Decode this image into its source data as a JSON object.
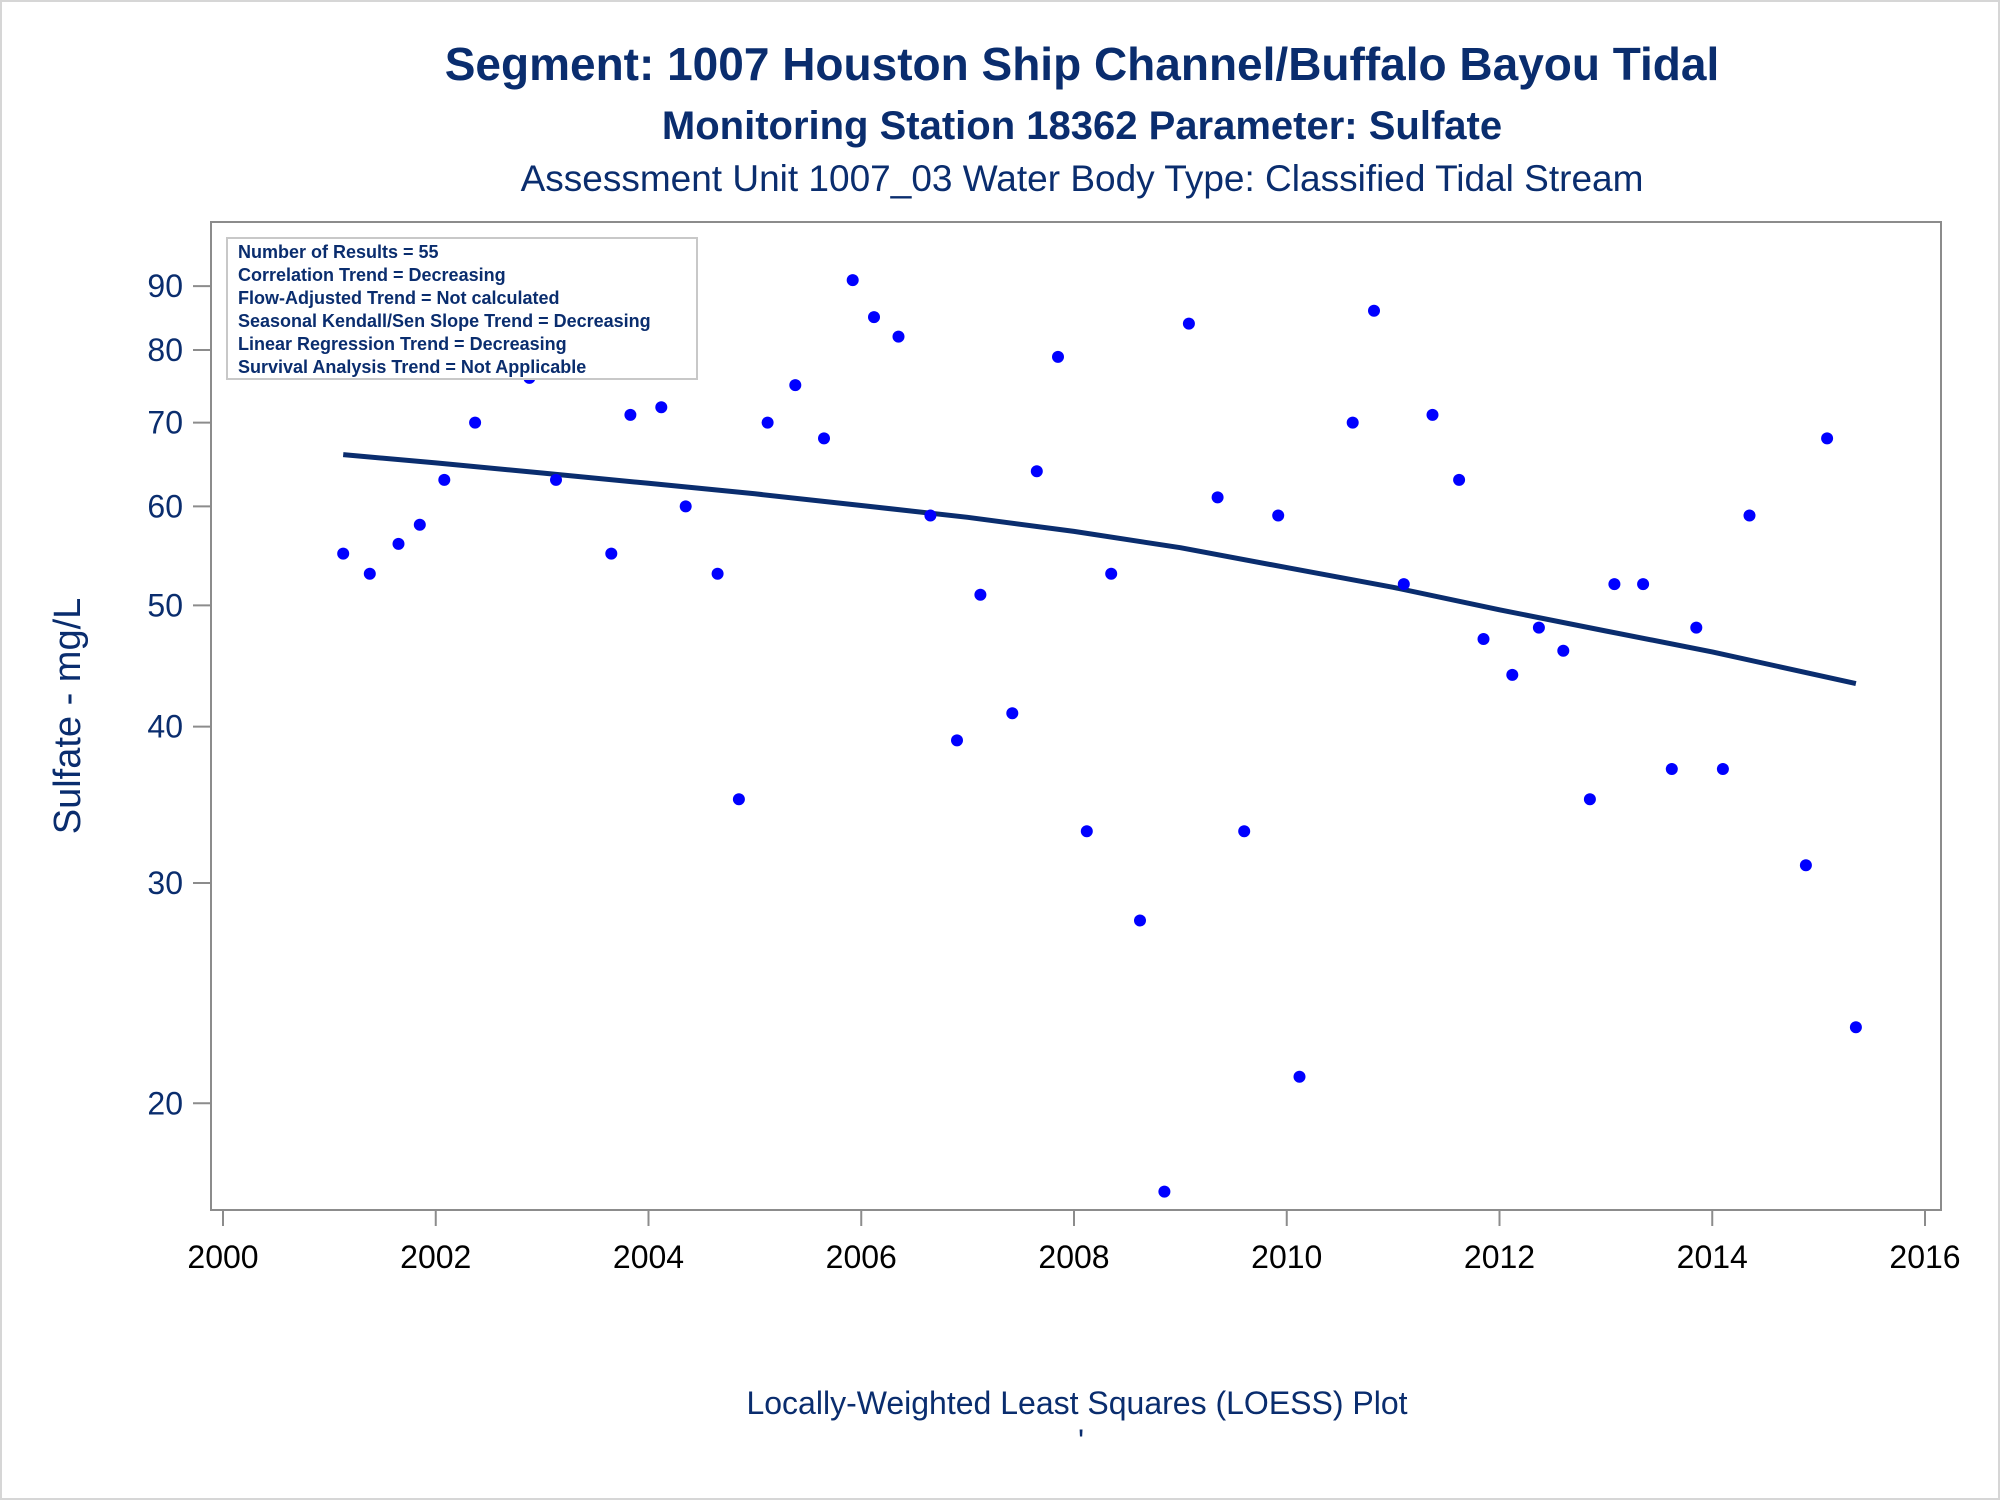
{
  "chart_data": {
    "type": "scatter",
    "title": "Segment: 1007  Houston Ship Channel/Buffalo Bayou Tidal",
    "subtitle": "Monitoring Station 18362 Parameter: Sulfate",
    "subtitle2": "Assessment Unit 1007_03   Water Body Type: Classified Tidal Stream",
    "xlabel": "",
    "ylabel": "Sulfate - mg/L",
    "footnote": "Locally-Weighted Least Squares (LOESS) Plot",
    "footnote_mark": "'",
    "y_scale": "log",
    "xlim": [
      2000,
      2016
    ],
    "ylim": [
      16.8,
      96
    ],
    "x_ticks": [
      2000,
      2002,
      2004,
      2006,
      2008,
      2010,
      2012,
      2014,
      2016
    ],
    "y_ticks": [
      20,
      30,
      40,
      50,
      60,
      70,
      80,
      90
    ],
    "grid": false,
    "stats_box": {
      "placement": "top-left",
      "lines": [
        "Number of Results = 55",
        "Correlation Trend = Decreasing",
        "Flow-Adjusted Trend = Not calculated",
        "Seasonal Kendall/Sen Slope Trend = Decreasing",
        "Linear Regression Trend = Decreasing",
        "Survival Analysis Trend = Not Applicable"
      ]
    },
    "colors": {
      "points": "#0000ff",
      "trend": "#0a2d6e",
      "text": "#0a2d6e",
      "axis": "#8c8c8c"
    },
    "series": [
      {
        "type": "scatter",
        "x": [
          2001.13,
          2001.38,
          2001.65,
          2001.85,
          2002.08,
          2002.37,
          2002.88,
          2003.13,
          2003.35,
          2003.65,
          2003.83,
          2004.12,
          2004.35,
          2004.65,
          2004.85,
          2005.12,
          2005.38,
          2005.65,
          2005.92,
          2006.12,
          2006.35,
          2006.65,
          2006.9,
          2007.12,
          2007.42,
          2007.65,
          2007.85,
          2008.12,
          2008.35,
          2008.62,
          2008.85,
          2009.08,
          2009.35,
          2009.6,
          2009.92,
          2010.12,
          2010.62,
          2010.82,
          2011.1,
          2011.37,
          2011.62,
          2011.85,
          2012.12,
          2012.37,
          2012.6,
          2012.85,
          2013.08,
          2013.35,
          2013.62,
          2013.85,
          2014.1,
          2014.35,
          2014.88,
          2015.08,
          2015.35
        ],
        "y": [
          55,
          53,
          56,
          58,
          63,
          70,
          76,
          63,
          78,
          55,
          71,
          72,
          60,
          53,
          35,
          70,
          75,
          68,
          91,
          85,
          82,
          59,
          39,
          51,
          41,
          64,
          79,
          33,
          53,
          28,
          17,
          84,
          61,
          33,
          59,
          21,
          70,
          86,
          52,
          71,
          63,
          47,
          44,
          48,
          46,
          35,
          52,
          52,
          37,
          48,
          37,
          59,
          31,
          68,
          23
        ]
      },
      {
        "type": "line",
        "x": [
          2001.13,
          2002,
          2003,
          2004,
          2005,
          2006,
          2007,
          2008,
          2009,
          2010,
          2011,
          2012,
          2013,
          2014,
          2015.35
        ],
        "y": [
          66,
          65,
          63.8,
          62.6,
          61.4,
          60.1,
          58.8,
          57.3,
          55.6,
          53.6,
          51.7,
          49.6,
          47.7,
          45.9,
          43.3
        ]
      }
    ]
  }
}
